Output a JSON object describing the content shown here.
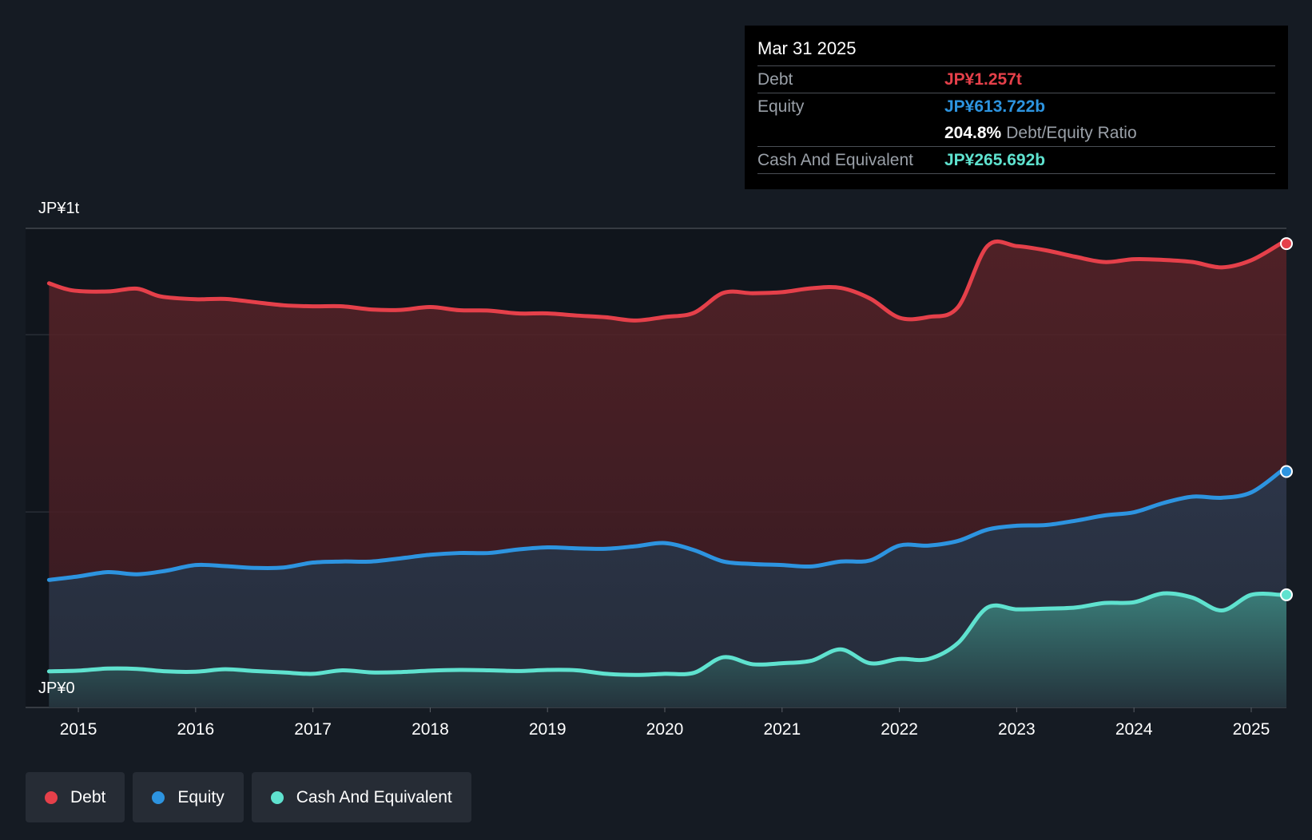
{
  "tooltip": {
    "date": "Mar 31 2025",
    "debt_label": "Debt",
    "debt_value": "JP¥1.257t",
    "equity_label": "Equity",
    "equity_value": "JP¥613.722b",
    "ratio_value": "204.8%",
    "ratio_label": "Debt/Equity Ratio",
    "cash_label": "Cash And Equivalent",
    "cash_value": "JP¥265.692b"
  },
  "legend": [
    {
      "label": "Debt",
      "color": "#e5404a"
    },
    {
      "label": "Equity",
      "color": "#2d94e0"
    },
    {
      "label": "Cash And Equivalent",
      "color": "#5fe2cf"
    }
  ],
  "chart_data": {
    "type": "area",
    "title": "",
    "y_top_label": "JP¥1t",
    "y_bottom_label": "JP¥0",
    "ylim": [
      0,
      1.3
    ],
    "x_ticks": [
      "2015",
      "2016",
      "2017",
      "2018",
      "2019",
      "2020",
      "2021",
      "2022",
      "2023",
      "2024",
      "2025"
    ],
    "xlim": [
      2014.55,
      2025.3
    ],
    "series": [
      {
        "name": "Debt",
        "color": "#e5404a",
        "points": [
          [
            2014.75,
            1.145
          ],
          [
            2014.95,
            1.125
          ],
          [
            2015.25,
            1.122
          ],
          [
            2015.5,
            1.13
          ],
          [
            2015.7,
            1.108
          ],
          [
            2016.0,
            1.1
          ],
          [
            2016.25,
            1.101
          ],
          [
            2016.5,
            1.092
          ],
          [
            2016.75,
            1.083
          ],
          [
            2017.0,
            1.08
          ],
          [
            2017.25,
            1.08
          ],
          [
            2017.5,
            1.071
          ],
          [
            2017.75,
            1.07
          ],
          [
            2018.0,
            1.078
          ],
          [
            2018.25,
            1.069
          ],
          [
            2018.5,
            1.068
          ],
          [
            2018.75,
            1.06
          ],
          [
            2019.0,
            1.06
          ],
          [
            2019.25,
            1.054
          ],
          [
            2019.5,
            1.049
          ],
          [
            2019.75,
            1.04
          ],
          [
            2020.0,
            1.05
          ],
          [
            2020.25,
            1.062
          ],
          [
            2020.5,
            1.118
          ],
          [
            2020.75,
            1.117
          ],
          [
            2021.0,
            1.12
          ],
          [
            2021.25,
            1.131
          ],
          [
            2021.5,
            1.132
          ],
          [
            2021.75,
            1.102
          ],
          [
            2022.0,
            1.048
          ],
          [
            2022.25,
            1.05
          ],
          [
            2022.5,
            1.078
          ],
          [
            2022.75,
            1.25
          ],
          [
            2023.0,
            1.25
          ],
          [
            2023.25,
            1.238
          ],
          [
            2023.5,
            1.22
          ],
          [
            2023.75,
            1.205
          ],
          [
            2024.0,
            1.213
          ],
          [
            2024.25,
            1.211
          ],
          [
            2024.5,
            1.205
          ],
          [
            2024.75,
            1.19
          ],
          [
            2025.0,
            1.21
          ],
          [
            2025.25,
            1.257
          ]
        ]
      },
      {
        "name": "Equity",
        "color": "#2d94e0",
        "points": [
          [
            2014.75,
            0.308
          ],
          [
            2015.0,
            0.318
          ],
          [
            2015.25,
            0.33
          ],
          [
            2015.5,
            0.324
          ],
          [
            2015.75,
            0.334
          ],
          [
            2016.0,
            0.35
          ],
          [
            2016.25,
            0.347
          ],
          [
            2016.5,
            0.342
          ],
          [
            2016.75,
            0.343
          ],
          [
            2017.0,
            0.357
          ],
          [
            2017.25,
            0.36
          ],
          [
            2017.5,
            0.36
          ],
          [
            2017.75,
            0.369
          ],
          [
            2018.0,
            0.379
          ],
          [
            2018.25,
            0.384
          ],
          [
            2018.5,
            0.384
          ],
          [
            2018.75,
            0.394
          ],
          [
            2019.0,
            0.4
          ],
          [
            2019.25,
            0.397
          ],
          [
            2019.5,
            0.396
          ],
          [
            2019.75,
            0.403
          ],
          [
            2020.0,
            0.412
          ],
          [
            2020.25,
            0.392
          ],
          [
            2020.5,
            0.36
          ],
          [
            2020.75,
            0.353
          ],
          [
            2021.0,
            0.35
          ],
          [
            2021.25,
            0.346
          ],
          [
            2021.5,
            0.36
          ],
          [
            2021.75,
            0.363
          ],
          [
            2022.0,
            0.405
          ],
          [
            2022.25,
            0.405
          ],
          [
            2022.5,
            0.418
          ],
          [
            2022.75,
            0.45
          ],
          [
            2023.0,
            0.461
          ],
          [
            2023.25,
            0.463
          ],
          [
            2023.5,
            0.475
          ],
          [
            2023.75,
            0.49
          ],
          [
            2024.0,
            0.499
          ],
          [
            2024.25,
            0.525
          ],
          [
            2024.5,
            0.543
          ],
          [
            2024.75,
            0.54
          ],
          [
            2025.0,
            0.555
          ],
          [
            2025.25,
            0.614
          ]
        ]
      },
      {
        "name": "Cash And Equivalent",
        "color": "#5fe2cf",
        "points": [
          [
            2014.75,
            0.05
          ],
          [
            2015.0,
            0.052
          ],
          [
            2015.25,
            0.058
          ],
          [
            2015.5,
            0.057
          ],
          [
            2015.75,
            0.05
          ],
          [
            2016.0,
            0.049
          ],
          [
            2016.25,
            0.056
          ],
          [
            2016.5,
            0.051
          ],
          [
            2016.75,
            0.047
          ],
          [
            2017.0,
            0.043
          ],
          [
            2017.25,
            0.053
          ],
          [
            2017.5,
            0.047
          ],
          [
            2017.75,
            0.048
          ],
          [
            2018.0,
            0.052
          ],
          [
            2018.25,
            0.054
          ],
          [
            2018.5,
            0.053
          ],
          [
            2018.75,
            0.051
          ],
          [
            2019.0,
            0.054
          ],
          [
            2019.25,
            0.053
          ],
          [
            2019.5,
            0.043
          ],
          [
            2019.75,
            0.04
          ],
          [
            2020.0,
            0.043
          ],
          [
            2020.25,
            0.046
          ],
          [
            2020.5,
            0.09
          ],
          [
            2020.75,
            0.07
          ],
          [
            2021.0,
            0.073
          ],
          [
            2021.25,
            0.08
          ],
          [
            2021.5,
            0.112
          ],
          [
            2021.75,
            0.073
          ],
          [
            2022.0,
            0.085
          ],
          [
            2022.25,
            0.085
          ],
          [
            2022.5,
            0.13
          ],
          [
            2022.75,
            0.23
          ],
          [
            2023.0,
            0.225
          ],
          [
            2023.25,
            0.227
          ],
          [
            2023.5,
            0.23
          ],
          [
            2023.75,
            0.243
          ],
          [
            2024.0,
            0.245
          ],
          [
            2024.25,
            0.27
          ],
          [
            2024.5,
            0.258
          ],
          [
            2024.75,
            0.222
          ],
          [
            2025.0,
            0.266
          ],
          [
            2025.25,
            0.266
          ]
        ]
      }
    ]
  }
}
